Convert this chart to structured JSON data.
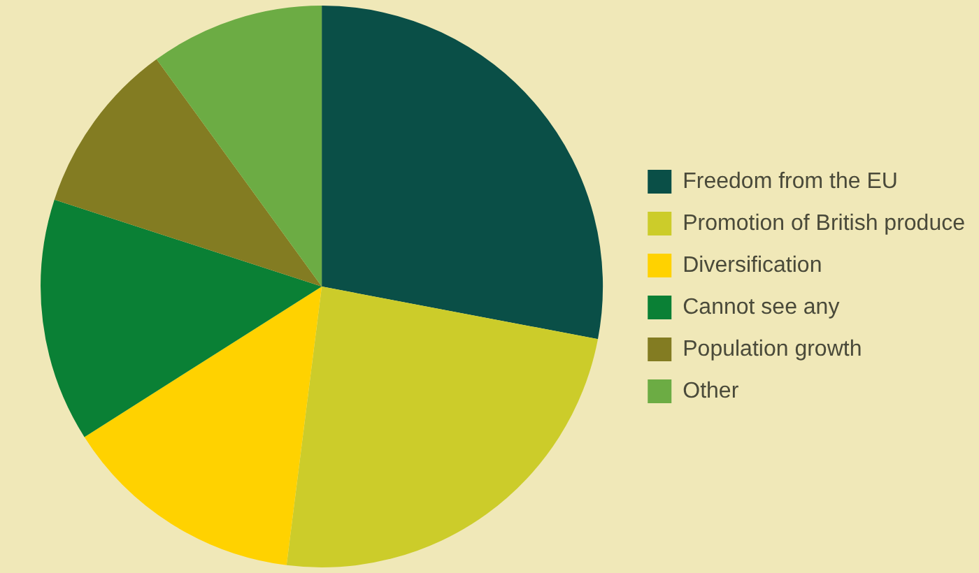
{
  "chart_data": {
    "type": "pie",
    "categories": [
      "Freedom from the EU",
      "Promotion of British produce",
      "Diversification",
      "Cannot see any",
      "Population growth",
      "Other"
    ],
    "values": [
      28,
      24,
      14,
      14,
      10,
      10
    ],
    "colors": [
      "#0a4f47",
      "#cccc2a",
      "#ffd200",
      "#0a8035",
      "#837c22",
      "#6cac44"
    ],
    "legend": "right"
  }
}
